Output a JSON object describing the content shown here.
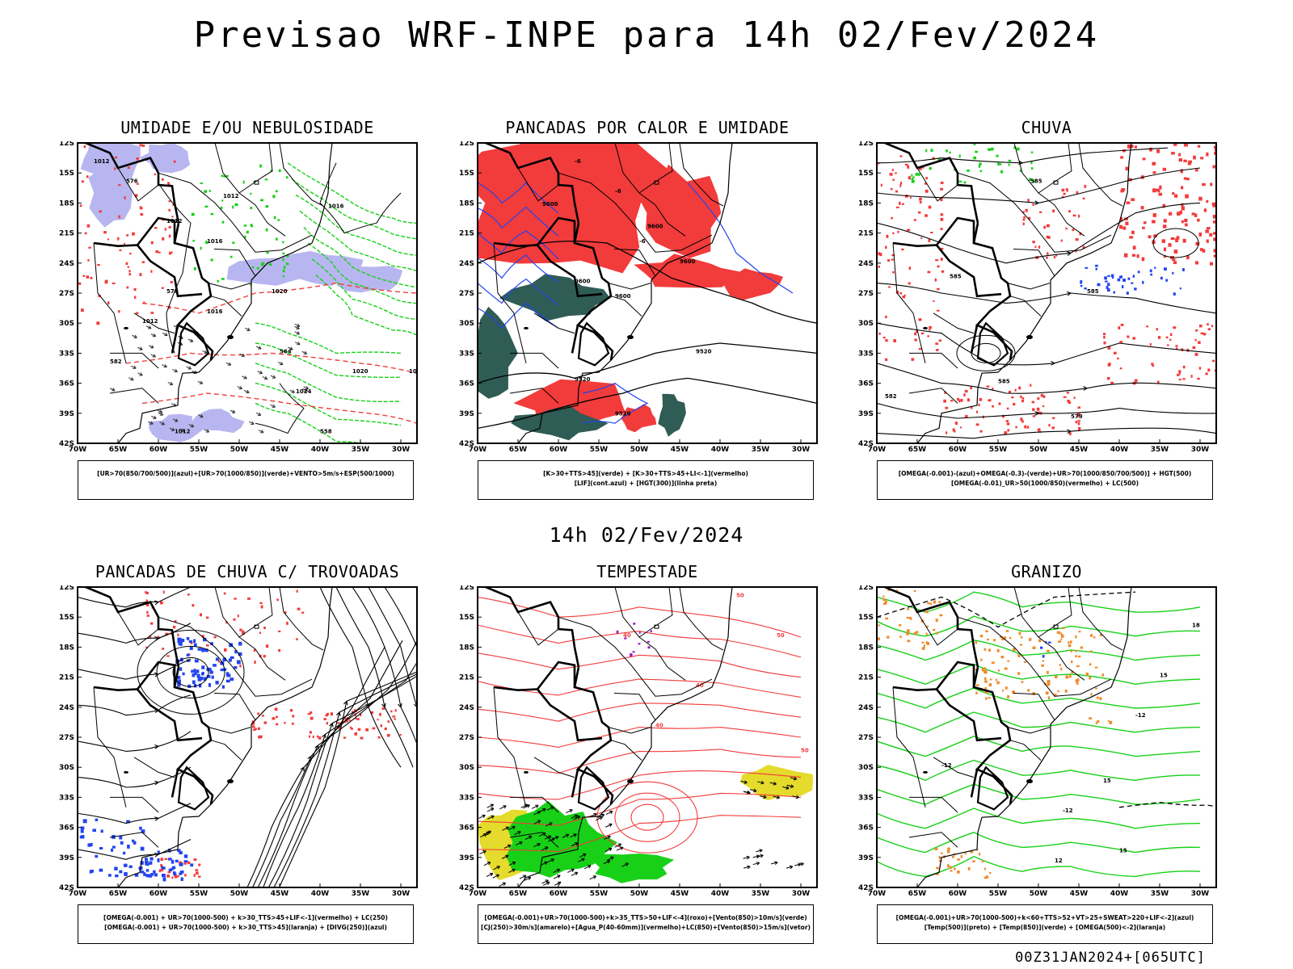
{
  "header": {
    "title": "Previsao WRF-INPE  para 14h 02/Fev/2024",
    "subtitle": "14h 02/Fev/2024",
    "footer": "00Z31JAN2024+[065UTC]"
  },
  "axes": {
    "lat_labels": [
      "12S",
      "15S",
      "18S",
      "21S",
      "24S",
      "27S",
      "30S",
      "33S",
      "36S",
      "39S",
      "42S"
    ],
    "lon_labels": [
      "70W",
      "65W",
      "60W",
      "55W",
      "50W",
      "45W",
      "40W",
      "35W",
      "30W"
    ]
  },
  "colors": {
    "humid_blue": "#b8b6f0",
    "green": "#18d018",
    "red": "#f23b3b",
    "dark_teal": "#2f5c55",
    "blue": "#2244ee",
    "yellow": "#e4db2c",
    "orange": "#f08a2a"
  },
  "panels": [
    {
      "id": "umidade",
      "title": "UMIDADE E/OU NEBULOSIDADE",
      "legend": [
        "[UR>70(850/700/500)](azul)+[UR>70(1000/850)](verde)+VENTO>5m/s+ESP(500/1000)"
      ],
      "contour_labels": [
        "1012",
        "1012",
        "1016",
        "1012",
        "1016",
        "1020",
        "1016",
        "1012",
        "1020",
        "1024",
        "1020",
        "1012",
        "570",
        "576",
        "582",
        "564",
        "558"
      ]
    },
    {
      "id": "pancadas",
      "title": "PANCADAS POR CALOR E UMIDADE",
      "legend": [
        "[K>30+TTS>45](verde) + [K>30+TTS>45+LI<-1](vermelho)",
        "[LIF](cont.azul) + [HGT(300)](linha preta)"
      ],
      "contour_labels": [
        "9600",
        "9600",
        "9600",
        "9600",
        "9600",
        "9520",
        "9520",
        "9520",
        "-6",
        "-6",
        "-6"
      ]
    },
    {
      "id": "chuva",
      "title": "CHUVA",
      "legend": [
        "[OMEGA(-0.001)-(azul)+OMEGA(-0.3)-(verde)+UR>70(1000/850/700/500)] + HGT(500)",
        "[OMEGA(-0.01)_UR>50(1000/850)(vermelho) + LC(500)"
      ],
      "contour_labels": [
        "585",
        "585",
        "585",
        "582",
        "579",
        "585"
      ]
    },
    {
      "id": "trovoadas",
      "title": "PANCADAS DE CHUVA C/ TROVOADAS",
      "legend": [
        "[OMEGA(-0.001) + UR>70(1000-500) + k>30_TTS>45+LIF<-1](vermelho) + LC(250)",
        "[OMEGA(-0.001) + UR>70(1000-500) + k>30_TTS>45](laranja) + [DIVG(250)](azul)"
      ],
      "contour_labels": []
    },
    {
      "id": "tempestade",
      "title": "TEMPESTADE",
      "legend": [
        "[OMEGA(-0.001)+UR>70(1000-500)+k>35_TTS>50+LIF<-4](roxo)+[Vento(850)>10m/s](verde)",
        "[CJ(250)>30m/s](amarelo)+[Agua_P(40-60mm)](vermelho)+LC(850)+[Vento(850)>15m/s](vetor)"
      ],
      "contour_labels": [
        "40",
        "40",
        "50",
        "40",
        "50",
        "50"
      ]
    },
    {
      "id": "granizo",
      "title": "GRANIZO",
      "legend": [
        "[OMEGA(-0.001)+UR>70(1000-500)+k<60+TTS>52+VT>25+SWEAT>220+LIF<-2](azul)",
        "[Temp(500)](preto) + [Temp(850)](verde) + [OMEGA(500)<-2](laranja)"
      ],
      "contour_labels": [
        "-12",
        "-12",
        "-12",
        "15",
        "15",
        "18",
        "12",
        "15"
      ]
    }
  ]
}
